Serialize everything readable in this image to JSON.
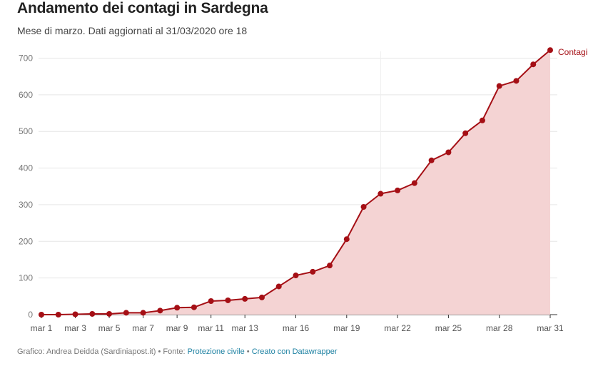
{
  "chart_data": {
    "type": "area",
    "title": "Andamento dei contagi in Sardegna",
    "subtitle": "Mese di marzo. Dati aggiornati al 31/03/2020 ore 18",
    "x": [
      "mar 1",
      "mar 2",
      "mar 3",
      "mar 4",
      "mar 5",
      "mar 6",
      "mar 7",
      "mar 8",
      "mar 9",
      "mar 10",
      "mar 11",
      "mar 12",
      "mar 13",
      "mar 14",
      "mar 15",
      "mar 16",
      "mar 17",
      "mar 18",
      "mar 19",
      "mar 20",
      "mar 21",
      "mar 22",
      "mar 23",
      "mar 24",
      "mar 25",
      "mar 26",
      "mar 27",
      "mar 28",
      "mar 29",
      "mar 30",
      "mar 31"
    ],
    "x_tick_labels": [
      "mar 1",
      "mar 3",
      "mar 5",
      "mar 7",
      "mar 9",
      "mar 11",
      "mar 13",
      "mar 16",
      "mar 19",
      "mar 22",
      "mar 25",
      "mar 28",
      "mar 31"
    ],
    "y_ticks": [
      0,
      100,
      200,
      300,
      400,
      500,
      600,
      700
    ],
    "ylim": [
      0,
      720
    ],
    "grid": true,
    "series": [
      {
        "name": "Contagi",
        "color": "#a50f15",
        "fill": "#f4d3d3",
        "values": [
          0,
          0,
          1,
          2,
          2,
          5,
          5,
          11,
          19,
          20,
          37,
          39,
          43,
          47,
          77,
          107,
          117,
          134,
          206,
          294,
          330,
          339,
          359,
          421,
          443,
          495,
          530,
          624,
          638,
          683,
          722
        ]
      }
    ]
  },
  "footer": {
    "credit": "Grafico: Andrea Deidda (Sardiniapost.it) • Fonte: ",
    "source_link": "Protezione civile",
    "separator": " • ",
    "tool_link": "Creato con Datawrapper"
  }
}
